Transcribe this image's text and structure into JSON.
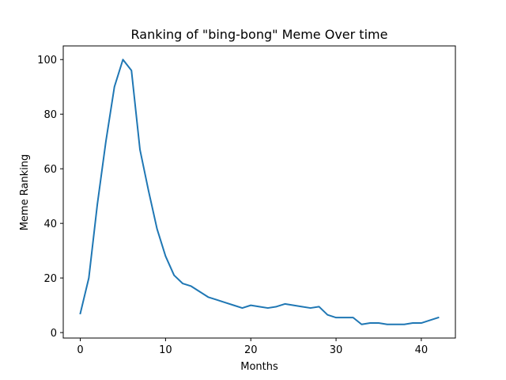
{
  "chart_data": {
    "type": "line",
    "title": "Ranking of \"bing-bong\" Meme Over time",
    "xlabel": "Months",
    "ylabel": "Meme Ranking",
    "xlim": [
      -2,
      44
    ],
    "ylim": [
      -2,
      105
    ],
    "xticks": [
      0,
      10,
      20,
      30,
      40
    ],
    "yticks": [
      0,
      20,
      40,
      60,
      80,
      100
    ],
    "grid": false,
    "series": [
      {
        "color": "#1f77b4",
        "x": [
          0,
          1,
          2,
          3,
          4,
          5,
          6,
          7,
          8,
          9,
          10,
          11,
          12,
          13,
          14,
          15,
          16,
          17,
          18,
          19,
          20,
          21,
          22,
          23,
          24,
          25,
          26,
          27,
          28,
          29,
          30,
          31,
          32,
          33,
          34,
          35,
          36,
          37,
          38,
          39,
          40,
          41,
          42
        ],
        "y": [
          7,
          20,
          47,
          70,
          90,
          100,
          96,
          67,
          52,
          38,
          28,
          21,
          18,
          17,
          15,
          13,
          12,
          11,
          10,
          9,
          10,
          9.5,
          9,
          9.5,
          10.5,
          10,
          9.5,
          9,
          9.5,
          6.5,
          5.5,
          5.5,
          5.5,
          3,
          3.5,
          3.5,
          3,
          3,
          3,
          3.5,
          3.5,
          4.5,
          5.5
        ]
      }
    ]
  }
}
